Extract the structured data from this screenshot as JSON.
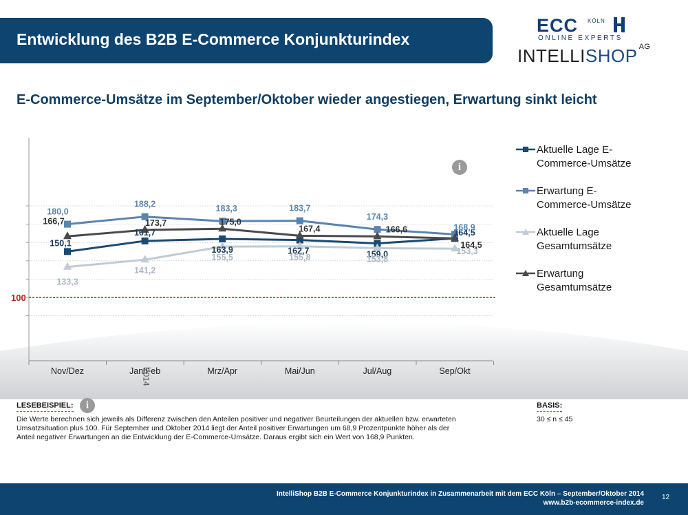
{
  "header": {
    "title": "Entwicklung des B2B E-Commerce Konjunkturindex",
    "logo_ecc_main": "ECC",
    "logo_ecc_city": "KÖLN",
    "logo_ecc_sub": "ONLINE EXPERTS",
    "logo_intelli_a": "INTELLI",
    "logo_intelli_b": "SHOP",
    "logo_intelli_ag": "AG"
  },
  "subtitle": "E-Commerce-Umsätze im September/Oktober wieder angestiegen, Erwartung sinkt leicht",
  "chart_data": {
    "type": "line",
    "categories": [
      "Nov/Dez",
      "Jan/Feb",
      "Mrz/Apr",
      "Mai/Jun",
      "Jul/Aug",
      "Sep/Okt"
    ],
    "category_sublabel": {
      "index": 1,
      "text": "2014"
    },
    "reference_line": {
      "value": 100,
      "label": "100",
      "color": "#b22222"
    },
    "series": [
      {
        "name": "Aktuelle Lage E-Commerce-Umsätze",
        "color": "#1a4a72",
        "marker": "square",
        "values": [
          150.1,
          161.7,
          163.9,
          162.7,
          159.0,
          164.5
        ],
        "labels": [
          "150,1",
          "161,7",
          "163,9",
          "162,7",
          "159,0",
          "164,5"
        ]
      },
      {
        "name": "Erwartung E-Commerce-Umsätze",
        "color": "#5a84b0",
        "marker": "square",
        "values": [
          180.0,
          188.2,
          183.3,
          183.7,
          174.3,
          168.9
        ],
        "labels": [
          "180,0",
          "188,2",
          "183,3",
          "183,7",
          "174,3",
          "168,9"
        ]
      },
      {
        "name": "Aktuelle Lage Gesamtumsätze",
        "color": "#bfcbd6",
        "marker": "triangle",
        "values": [
          133.3,
          141.2,
          155.5,
          155.8,
          153.8,
          153.3
        ],
        "labels": [
          "133,3",
          "141,2",
          "155,5",
          "155,8",
          "153,8",
          "153,3"
        ]
      },
      {
        "name": "Erwartung Gesamtumsätze",
        "color": "#4a4a4a",
        "marker": "triangle",
        "values": [
          166.7,
          173.7,
          175.0,
          167.4,
          166.6,
          164.5
        ],
        "labels": [
          "166,7",
          "173,7",
          "175,0",
          "167,4",
          "166,6",
          "164,5"
        ]
      }
    ],
    "legend": {
      "placement": "right",
      "entries": [
        {
          "line1": "Aktuelle Lage E-",
          "line2": "Commerce-Umsätze"
        },
        {
          "line1": "Erwartung E-",
          "line2": "Commerce-Umsätze"
        },
        {
          "line1": "Aktuelle Lage",
          "line2": "Gesamtumsätze"
        },
        {
          "line1": "Erwartung",
          "line2": "Gesamtumsätze"
        }
      ]
    },
    "grid": true
  },
  "reading_example": {
    "heading": "LESEBEISPIEL:",
    "text": "Die Werte berechnen sich jeweils als Differenz zwischen den Anteilen positiver und negativer Beurteilungen der aktuellen bzw. erwarteten Umsatzsituation plus 100. Für September und Oktober 2014 liegt der Anteil positiver Erwartungen um 68,9 Prozentpunkte höher als der Anteil negativer Erwartungen an die Entwicklung der E-Commerce-Umsätze. Daraus ergibt sich ein Wert von 168,9 Punkten."
  },
  "basis": {
    "heading": "BASIS:",
    "text": "30 ≤ n ≤ 45"
  },
  "info_icon_glyph": "i",
  "footer": {
    "line1": "IntelliShop B2B E-Commerce Konjunkturindex in Zusammenarbeit mit dem ECC Köln – September/Oktober 2014",
    "line2": "www.b2b-ecommerce-index.de",
    "page": "12"
  }
}
